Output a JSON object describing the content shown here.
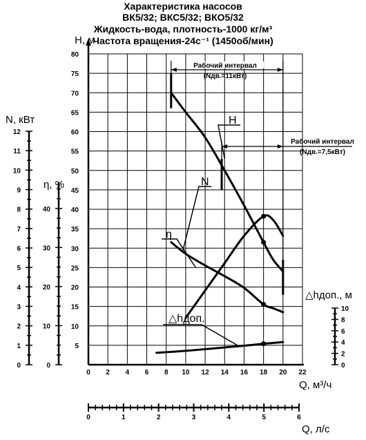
{
  "chart_data": {
    "type": "line",
    "title": [
      "Характеристика насосов",
      "ВК5/32; ВКС5/32; ВКО5/32",
      "Жидкость-вода, плотность-1000 кг/м³",
      "Частота вращения-24с⁻¹ (1450об/мин)"
    ],
    "axes": {
      "x_main": {
        "label": "Q, м³/ч",
        "range": [
          0,
          22
        ],
        "ticks": [
          "0",
          "2",
          "4",
          "6",
          "8",
          "10",
          "12",
          "14",
          "16",
          "18",
          "20",
          "22"
        ]
      },
      "x_secondary": {
        "label": "Q, л/с",
        "range": [
          0,
          6
        ],
        "ticks": [
          "0",
          "1",
          "2",
          "3",
          "4",
          "5",
          "6"
        ]
      },
      "y_head": {
        "label": "H, м",
        "range": [
          0,
          80
        ],
        "ticks": [
          "5",
          "10",
          "15",
          "20",
          "25",
          "30",
          "35",
          "40",
          "45",
          "50",
          "55",
          "60",
          "65",
          "70",
          "75",
          "80"
        ]
      },
      "y_power": {
        "label": "N, кВт",
        "range": [
          0,
          12
        ],
        "ticks": [
          "0",
          "1",
          "2",
          "3",
          "4",
          "5",
          "6",
          "7",
          "8",
          "9",
          "10",
          "11",
          "12"
        ]
      },
      "y_efficiency": {
        "label": "η, %",
        "range": [
          0,
          45
        ],
        "ticks": [
          "0",
          "10",
          "20",
          "30",
          "40"
        ]
      },
      "y_npsh": {
        "label": "△hдоп., м",
        "range": [
          0,
          10
        ],
        "ticks": [
          "0",
          "2",
          "4",
          "6",
          "8",
          "10"
        ]
      }
    },
    "series": [
      {
        "name": "H",
        "axis": "y_head",
        "x": [
          8.5,
          10,
          12,
          14,
          16,
          18,
          19,
          20
        ],
        "y": [
          70,
          65,
          58.5,
          50,
          41,
          31.5,
          27,
          24
        ]
      },
      {
        "name": "N",
        "axis": "y_power",
        "x": [
          8.5,
          10,
          12,
          14,
          16,
          18,
          19,
          20
        ],
        "y": [
          6.3,
          5.7,
          5.1,
          4.55,
          3.95,
          3.1,
          2.9,
          2.7
        ]
      },
      {
        "name": "η",
        "axis": "y_efficiency",
        "x": [
          10,
          12,
          14,
          16,
          18,
          19,
          20
        ],
        "y": [
          12,
          19,
          26,
          33,
          38,
          37,
          33
        ]
      },
      {
        "name": "△hдоп.",
        "axis": "y_npsh",
        "x": [
          7,
          10,
          12,
          14,
          16,
          18,
          20
        ],
        "y": [
          2.1,
          2.45,
          2.75,
          3.05,
          3.35,
          3.7,
          4.0
        ]
      }
    ],
    "markers": [
      {
        "series": "H",
        "x": 18,
        "y": 31.5
      },
      {
        "series": "N",
        "axis": "y_power",
        "x": 18,
        "y": 3.1
      },
      {
        "series": "η",
        "axis": "y_efficiency",
        "x": 18,
        "y": 38
      },
      {
        "series": "△hдоп.",
        "axis": "y_npsh",
        "x": 18,
        "y": 3.7
      }
    ],
    "working_intervals": [
      {
        "label": "Рабочий интервал",
        "sub": "(Nдв.=11кВт)",
        "q_from": 8.5,
        "q_to": 20
      },
      {
        "label": "Рабочий интервал",
        "sub": "(Nдв.=7,5кВт)",
        "q_from": 13.7,
        "q_to": 20
      }
    ],
    "grid": true
  }
}
